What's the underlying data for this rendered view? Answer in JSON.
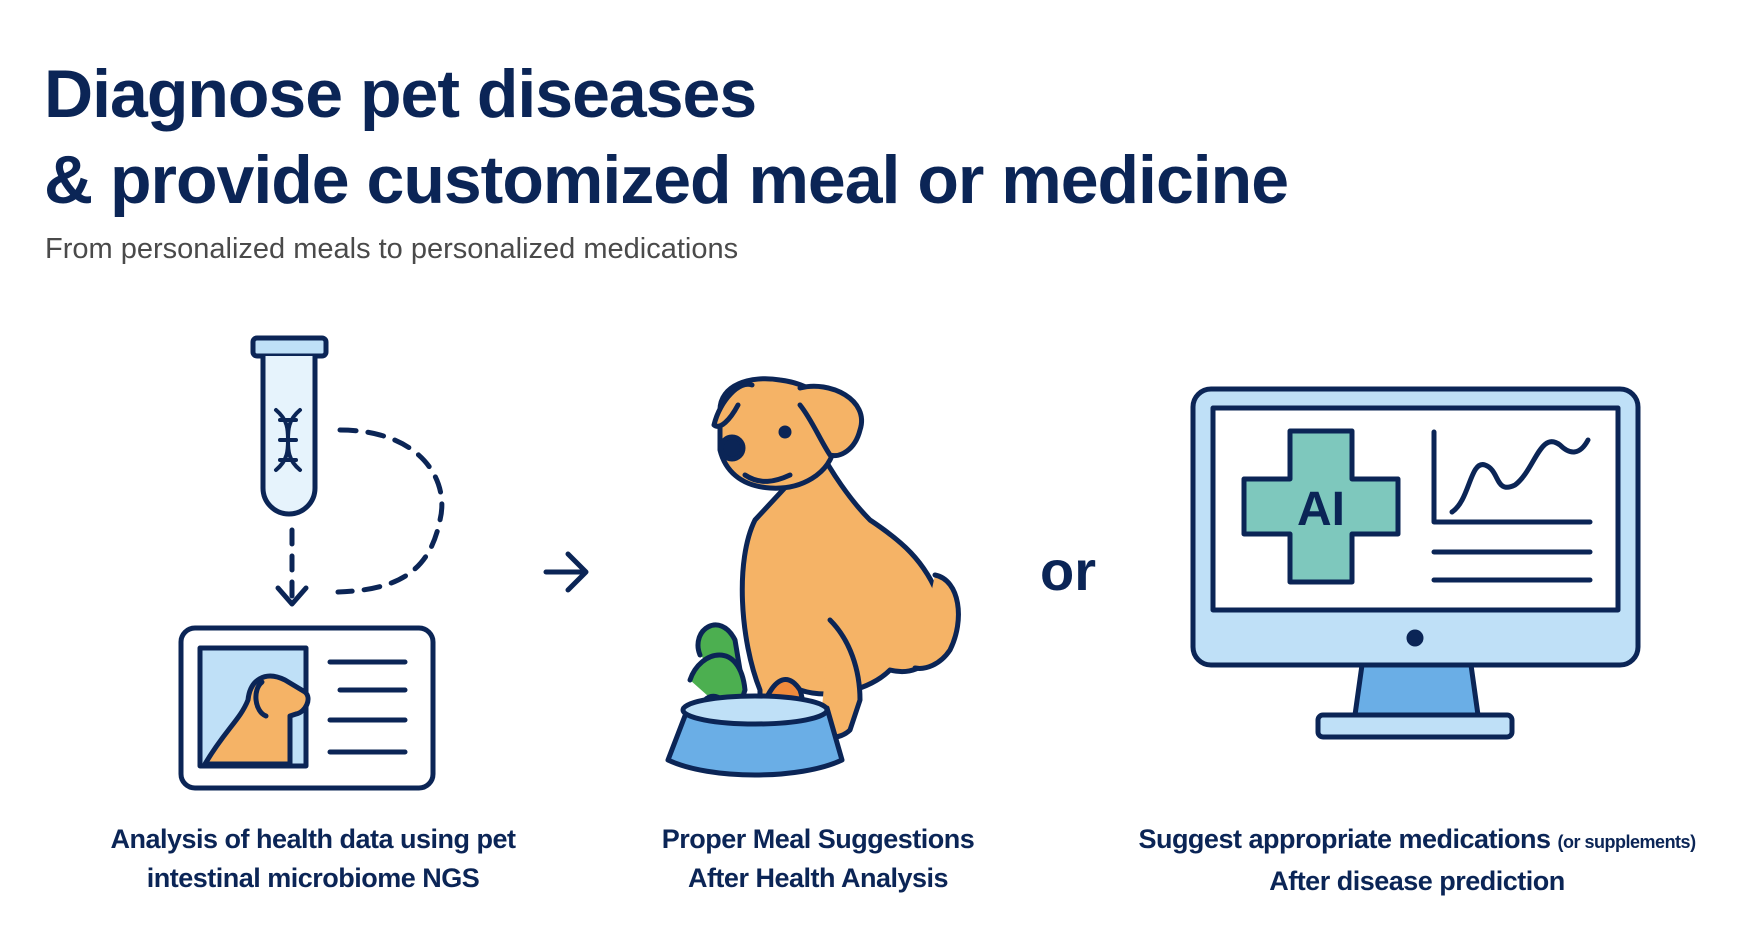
{
  "title": {
    "line1": "Diagnose pet diseases",
    "line2": "& provide customized meal or medicine"
  },
  "subtitle": "From personalized meals to personalized medications",
  "connector": "or",
  "steps": [
    {
      "icon": "test-tube-dna-and-pet-health-card-icon",
      "line1": "Analysis of health data using pet",
      "line2": "intestinal microbiome NGS"
    },
    {
      "icon": "dog-with-food-bowl-icon",
      "line1": "Proper Meal Suggestions",
      "line2": "After Health Analysis"
    },
    {
      "icon": "monitor-ai-medical-cross-icon",
      "line1": "Suggest appropriate medications",
      "line1_note": "(or supplements)",
      "line2": "After disease prediction",
      "badge": "AI"
    }
  ],
  "colors": {
    "navy": "#0b2556",
    "light_blue": "#bfe0f7",
    "mid_blue": "#6aaee6",
    "dog_orange": "#f5b366",
    "teal": "#7ec8bd",
    "carrot": "#ef8a3c",
    "greens": "#4caf50"
  }
}
